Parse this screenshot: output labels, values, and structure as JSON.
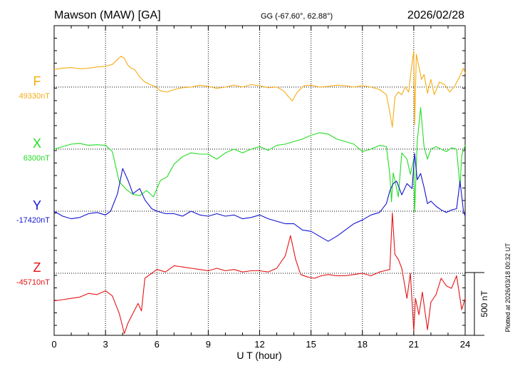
{
  "header": {
    "station": "Mawson (MAW)  [GA]",
    "coords": "GG (-67.60°,  62.88°)",
    "date": "2026/02/28"
  },
  "footer": {
    "plotted": "Plotted at 2026/03/18 00:32 UT"
  },
  "scale": {
    "label": "500 nT",
    "nT": 500
  },
  "chart_data": {
    "type": "line",
    "xlabel": "U T (hour)",
    "xlim": [
      0,
      24
    ],
    "xticks": [
      0,
      3,
      6,
      9,
      12,
      15,
      18,
      21,
      24
    ],
    "grid": true,
    "series": [
      {
        "name": "F",
        "baseline_label": "49330nT",
        "baseline": 49330,
        "color": "#f5ac14",
        "x": [
          0,
          0.5,
          1,
          1.5,
          2,
          2.5,
          3,
          3.4,
          3.7,
          3.9,
          4.1,
          4.3,
          4.5,
          4.7,
          5,
          5.3,
          5.6,
          5.9,
          6.2,
          6.6,
          7,
          7.5,
          8,
          8.5,
          9,
          9.5,
          10,
          10.5,
          11,
          11.5,
          12,
          12.5,
          13,
          13.4,
          13.7,
          13.9,
          14.2,
          14.6,
          15,
          15.5,
          16,
          16.5,
          17,
          17.5,
          18,
          18.5,
          19,
          19.4,
          19.6,
          19.75,
          19.9,
          20.1,
          20.3,
          20.5,
          20.7,
          20.85,
          21,
          21.05,
          21.15,
          21.3,
          21.45,
          21.6,
          21.8,
          22,
          22.2,
          22.5,
          22.8,
          23.1,
          23.4,
          23.7,
          23.9,
          24
        ],
        "values": [
          140,
          150,
          155,
          145,
          150,
          160,
          165,
          180,
          220,
          245,
          230,
          175,
          150,
          140,
          80,
          40,
          20,
          5,
          -30,
          -40,
          -20,
          -5,
          0,
          15,
          5,
          -10,
          0,
          15,
          0,
          20,
          10,
          -5,
          0,
          -30,
          -80,
          -110,
          -40,
          10,
          15,
          0,
          5,
          15,
          10,
          0,
          10,
          0,
          -20,
          -60,
          -200,
          -320,
          -80,
          -40,
          -60,
          0,
          -40,
          140,
          290,
          -300,
          260,
          160,
          60,
          100,
          -50,
          60,
          -60,
          40,
          20,
          -40,
          10,
          90,
          150,
          110
        ]
      },
      {
        "name": "X",
        "baseline_label": "6300nT",
        "baseline": 6300,
        "color": "#22dd22",
        "x": [
          0,
          0.5,
          1,
          1.5,
          2,
          2.5,
          3,
          3.4,
          3.8,
          4.2,
          4.6,
          5,
          5.4,
          5.8,
          6.2,
          6.6,
          7,
          7.5,
          8,
          8.5,
          9,
          9.5,
          10,
          10.5,
          11,
          11.5,
          12,
          12.5,
          13,
          13.5,
          14,
          14.5,
          15,
          15.5,
          16,
          16.5,
          17,
          17.5,
          18,
          18.5,
          19,
          19.4,
          19.6,
          19.7,
          19.8,
          19.9,
          20.1,
          20.3,
          20.6,
          20.8,
          21,
          21.05,
          21.2,
          21.4,
          21.6,
          21.8,
          22,
          22.3,
          22.6,
          22.9,
          23.2,
          23.5,
          23.7,
          23.8,
          24
        ],
        "values": [
          0,
          20,
          40,
          45,
          30,
          35,
          30,
          -20,
          -260,
          -320,
          -360,
          -370,
          -330,
          -380,
          -250,
          -220,
          -120,
          -60,
          -30,
          -40,
          -40,
          -80,
          -30,
          0,
          -30,
          0,
          20,
          -10,
          30,
          40,
          60,
          80,
          110,
          130,
          120,
          80,
          60,
          40,
          -20,
          0,
          30,
          20,
          -200,
          -420,
          -190,
          -250,
          -380,
          -30,
          -80,
          -200,
          -80,
          -500,
          60,
          330,
          20,
          -80,
          0,
          20,
          0,
          -20,
          10,
          0,
          -300,
          -50,
          30
        ]
      },
      {
        "name": "Y",
        "baseline_label": "-17420nT",
        "baseline": -17420,
        "color": "#1414d2",
        "x": [
          0,
          0.5,
          1,
          1.5,
          2,
          2.5,
          3,
          3.3,
          3.7,
          4,
          4.3,
          4.6,
          5,
          5.3,
          5.7,
          6,
          6.5,
          7,
          7.5,
          8,
          8.5,
          9,
          9.5,
          10,
          10.5,
          11,
          11.5,
          12,
          12.5,
          13,
          13.5,
          14,
          14.5,
          15,
          15.5,
          16,
          16.5,
          17,
          17.5,
          18,
          18.5,
          19,
          19.4,
          19.6,
          19.8,
          20,
          20.3,
          20.6,
          20.9,
          21.05,
          21.2,
          21.4,
          21.6,
          21.8,
          22,
          22.3,
          22.6,
          22.9,
          23.2,
          23.5,
          23.7,
          23.9,
          24
        ],
        "values": [
          0,
          -40,
          -60,
          -50,
          -20,
          -10,
          -30,
          0,
          140,
          340,
          250,
          140,
          180,
          90,
          20,
          0,
          -20,
          -20,
          -40,
          0,
          -30,
          -40,
          -20,
          -40,
          -30,
          -60,
          -50,
          -30,
          -60,
          -80,
          -100,
          -100,
          -150,
          -160,
          -200,
          -240,
          -200,
          -150,
          -100,
          -70,
          -30,
          -10,
          60,
          160,
          220,
          240,
          130,
          220,
          180,
          460,
          250,
          300,
          190,
          60,
          80,
          40,
          10,
          -10,
          10,
          20,
          240,
          0,
          -40
        ]
      },
      {
        "name": "Z",
        "baseline_label": "-45710nT",
        "baseline": -45710,
        "color": "#e31414",
        "x": [
          0,
          0.5,
          1,
          1.5,
          2,
          2.5,
          3,
          3.4,
          3.8,
          4.1,
          4.3,
          4.6,
          4.9,
          5.1,
          5.3,
          5.6,
          6,
          6.5,
          7,
          7.5,
          8,
          8.5,
          9,
          9.5,
          10,
          10.5,
          11,
          11.5,
          12,
          12.5,
          13,
          13.5,
          13.8,
          14.1,
          14.4,
          14.8,
          15.2,
          15.6,
          16,
          16.5,
          17,
          17.5,
          18,
          18.5,
          19,
          19.3,
          19.6,
          19.75,
          19.9,
          20.1,
          20.3,
          20.6,
          20.8,
          21,
          21.1,
          21.3,
          21.5,
          21.8,
          22,
          22.3,
          22.6,
          22.9,
          23.2,
          23.5,
          23.8,
          24
        ],
        "values": [
          -220,
          -210,
          -200,
          -190,
          -160,
          -170,
          -140,
          -180,
          -320,
          -480,
          -400,
          -320,
          -240,
          -300,
          -40,
          -10,
          30,
          10,
          60,
          50,
          40,
          30,
          20,
          40,
          20,
          30,
          10,
          20,
          20,
          10,
          40,
          140,
          300,
          110,
          -10,
          -30,
          -40,
          -20,
          -10,
          -20,
          -20,
          -10,
          0,
          -20,
          10,
          20,
          30,
          480,
          150,
          110,
          40,
          -200,
          0,
          -460,
          -200,
          -330,
          -150,
          -450,
          -230,
          -170,
          -40,
          -100,
          -120,
          -20,
          -290,
          -200
        ]
      }
    ]
  }
}
